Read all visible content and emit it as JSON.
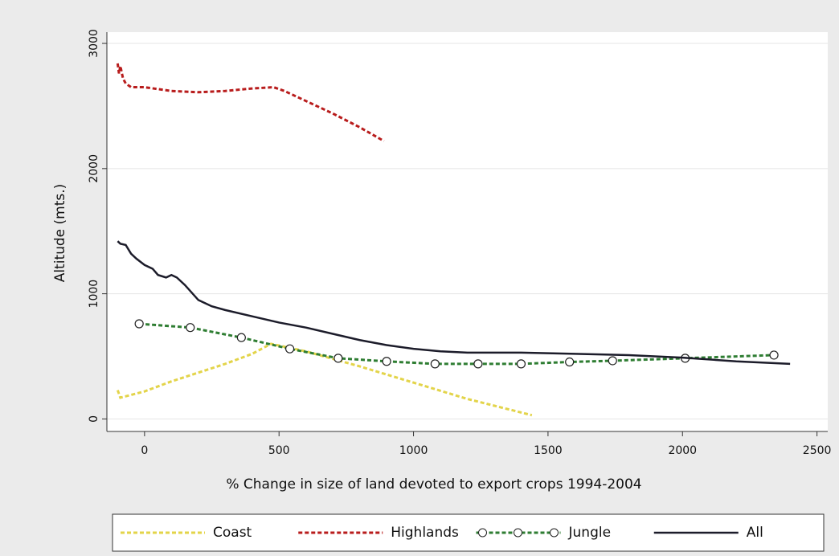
{
  "chart_data": {
    "type": "line",
    "x_label": "% Change in size of land devoted to export crops 1994-2004",
    "y_label": "Altitude (mts.)",
    "xlim": [
      -140,
      2540
    ],
    "ylim": [
      -100,
      3090
    ],
    "xticks": [
      0,
      500,
      1000,
      1500,
      2000,
      2500
    ],
    "yticks": [
      0,
      1000,
      2000,
      3000
    ],
    "grid": true,
    "legend": "bottom",
    "series": [
      {
        "name": "Coast",
        "color": "#e3d44a",
        "dash": true,
        "markers": false,
        "x": [
          -100,
          -90,
          0,
          100,
          200,
          300,
          400,
          470,
          600,
          800,
          1000,
          1200,
          1440
        ],
        "values": [
          230,
          170,
          220,
          300,
          370,
          440,
          520,
          600,
          540,
          420,
          290,
          160,
          30
        ]
      },
      {
        "name": "Highlands",
        "color": "#b81c1c",
        "dash": true,
        "markers": false,
        "x": [
          -100,
          -95,
          -90,
          -80,
          -70,
          -50,
          0,
          100,
          200,
          300,
          400,
          480,
          520,
          600,
          700,
          800,
          890
        ],
        "values": [
          2840,
          2760,
          2820,
          2720,
          2680,
          2650,
          2650,
          2620,
          2610,
          2620,
          2640,
          2650,
          2620,
          2540,
          2440,
          2330,
          2220
        ]
      },
      {
        "name": "Jungle",
        "color": "#2e7d32",
        "dash": true,
        "markers": true,
        "x": [
          -20,
          170,
          360,
          540,
          720,
          900,
          1080,
          1240,
          1400,
          1580,
          1740,
          2010,
          2340
        ],
        "values": [
          760,
          730,
          650,
          560,
          485,
          460,
          440,
          440,
          440,
          455,
          465,
          485,
          510
        ]
      },
      {
        "name": "All",
        "color": "#1c1c2a",
        "dash": false,
        "markers": false,
        "x": [
          -100,
          -90,
          -70,
          -50,
          -30,
          0,
          30,
          50,
          80,
          100,
          120,
          150,
          200,
          250,
          300,
          400,
          500,
          600,
          700,
          800,
          900,
          1000,
          1100,
          1200,
          1400,
          1600,
          1800,
          2000,
          2200,
          2400
        ],
        "values": [
          1420,
          1400,
          1390,
          1320,
          1280,
          1230,
          1200,
          1150,
          1130,
          1150,
          1130,
          1070,
          950,
          900,
          870,
          820,
          770,
          730,
          680,
          630,
          590,
          560,
          540,
          530,
          530,
          520,
          510,
          490,
          460,
          440
        ]
      }
    ]
  }
}
